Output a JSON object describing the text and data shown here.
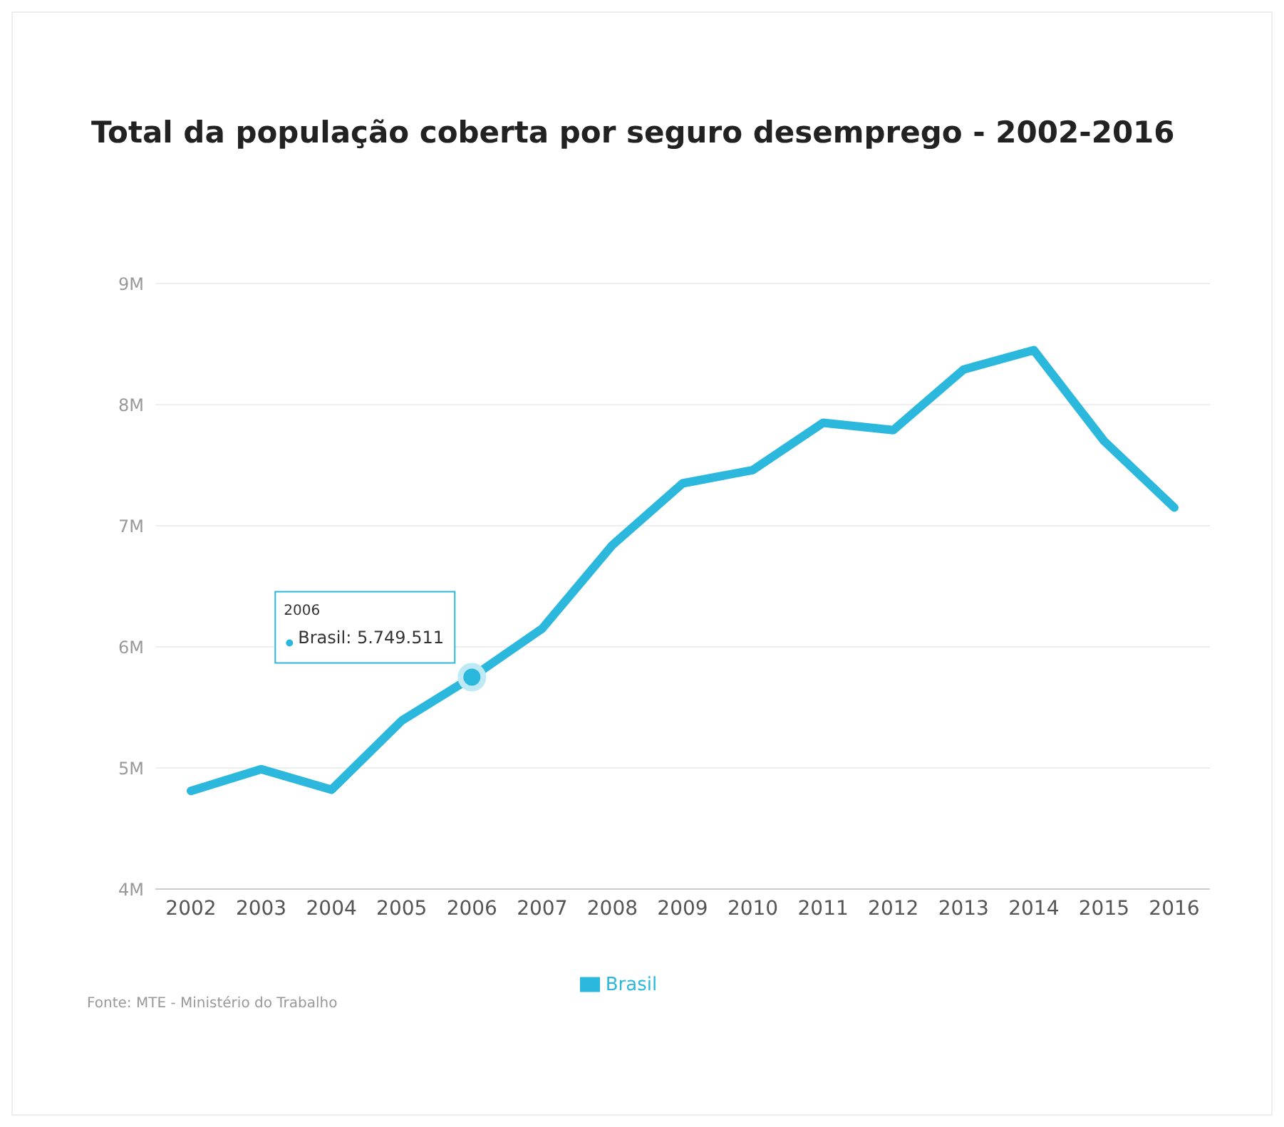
{
  "chart_data": {
    "type": "line",
    "title": "Total da população coberta por seguro desemprego - 2002-2016",
    "categories": [
      "2002",
      "2003",
      "2004",
      "2005",
      "2006",
      "2007",
      "2008",
      "2009",
      "2010",
      "2011",
      "2012",
      "2013",
      "2014",
      "2015",
      "2016"
    ],
    "series": [
      {
        "name": "Brasil",
        "color": "#2cb8dc",
        "values": [
          4.81,
          4.99,
          4.82,
          5.39,
          5.749511,
          6.15,
          6.84,
          7.35,
          7.46,
          7.85,
          7.79,
          8.29,
          8.45,
          7.7,
          7.15
        ]
      }
    ],
    "ylim": [
      4,
      9
    ],
    "yticks": [
      {
        "value": 4,
        "label": "4M"
      },
      {
        "value": 5,
        "label": "5M"
      },
      {
        "value": 6,
        "label": "6M"
      },
      {
        "value": 7,
        "label": "7M"
      },
      {
        "value": 8,
        "label": "8M"
      },
      {
        "value": 9,
        "label": "9M"
      }
    ],
    "grid": "y",
    "legend": "bottom",
    "marker": "none",
    "line_style": "solid",
    "annotations": [
      {
        "text": "2006\nBrasil: 5.749.511",
        "x": "2006",
        "y": 5.749511
      },
      "Fonte: MTE - Ministério do Trabalho"
    ]
  }
}
